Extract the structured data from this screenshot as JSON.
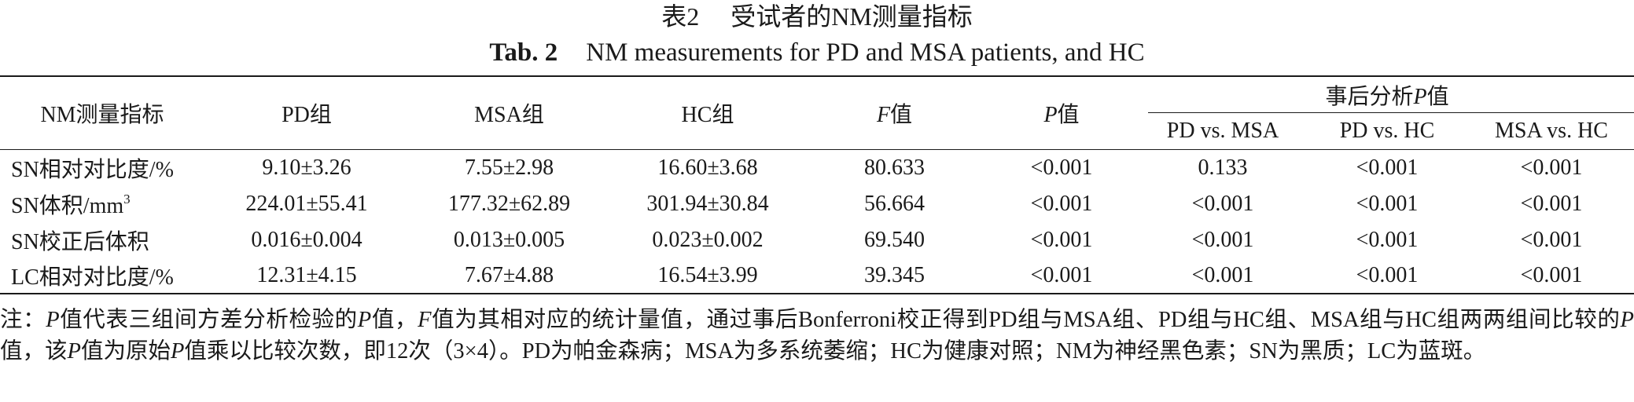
{
  "caption": {
    "cn_number": "表2",
    "cn_title": "受试者的NM测量指标",
    "en_number": "Tab. 2",
    "en_title": "NM measurements for PD and MSA patients, and HC"
  },
  "table": {
    "headers": {
      "metric": "NM测量指标",
      "pd": "PD组",
      "msa": "MSA组",
      "hc": "HC组",
      "f_sym": "F",
      "f_suffix": "值",
      "p_sym": "P",
      "p_suffix": "值",
      "posthoc_prefix": "事后分析",
      "posthoc_sym": "P",
      "posthoc_suffix": "值",
      "sub": [
        "PD vs. MSA",
        "PD vs. HC",
        "MSA vs. HC"
      ]
    },
    "rows": [
      {
        "label": "SN相对对比度/%",
        "label_sup": "",
        "pd": "9.10±3.26",
        "msa": "7.55±2.98",
        "hc": "16.60±3.68",
        "f": "80.633",
        "p": "<0.001",
        "pd_msa": "0.133",
        "pd_hc": "<0.001",
        "msa_hc": "<0.001"
      },
      {
        "label": "SN体积/mm",
        "label_sup": "3",
        "pd": "224.01±55.41",
        "msa": "177.32±62.89",
        "hc": "301.94±30.84",
        "f": "56.664",
        "p": "<0.001",
        "pd_msa": "<0.001",
        "pd_hc": "<0.001",
        "msa_hc": "<0.001"
      },
      {
        "label": "SN校正后体积",
        "label_sup": "",
        "pd": "0.016±0.004",
        "msa": "0.013±0.005",
        "hc": "0.023±0.002",
        "f": "69.540",
        "p": "<0.001",
        "pd_msa": "<0.001",
        "pd_hc": "<0.001",
        "msa_hc": "<0.001"
      },
      {
        "label": "LC相对对比度/%",
        "label_sup": "",
        "pd": "12.31±4.15",
        "msa": "7.67±4.88",
        "hc": "16.54±3.99",
        "f": "39.345",
        "p": "<0.001",
        "pd_msa": "<0.001",
        "pd_hc": "<0.001",
        "msa_hc": "<0.001"
      }
    ]
  },
  "note": {
    "parts": [
      {
        "text": "注：",
        "italic": false
      },
      {
        "text": "P",
        "italic": true
      },
      {
        "text": "值代表三组间方差分析检验的",
        "italic": false
      },
      {
        "text": "P",
        "italic": true
      },
      {
        "text": "值，",
        "italic": false
      },
      {
        "text": "F",
        "italic": true
      },
      {
        "text": "值为其相对应的统计量值，通过事后Bonferroni校正得到PD组与MSA组、PD组与HC组、MSA组与HC组两两组间比较的",
        "italic": false
      },
      {
        "text": "P",
        "italic": true
      },
      {
        "text": "值，该",
        "italic": false
      },
      {
        "text": "P",
        "italic": true
      },
      {
        "text": "值为原始",
        "italic": false
      },
      {
        "text": "P",
        "italic": true
      },
      {
        "text": "值乘以比较次数，即12次（3×4）。PD为帕金森病；MSA为多系统萎缩；HC为健康对照；NM为神经黑色素；SN为黑质；LC为蓝斑。",
        "italic": false
      }
    ]
  }
}
